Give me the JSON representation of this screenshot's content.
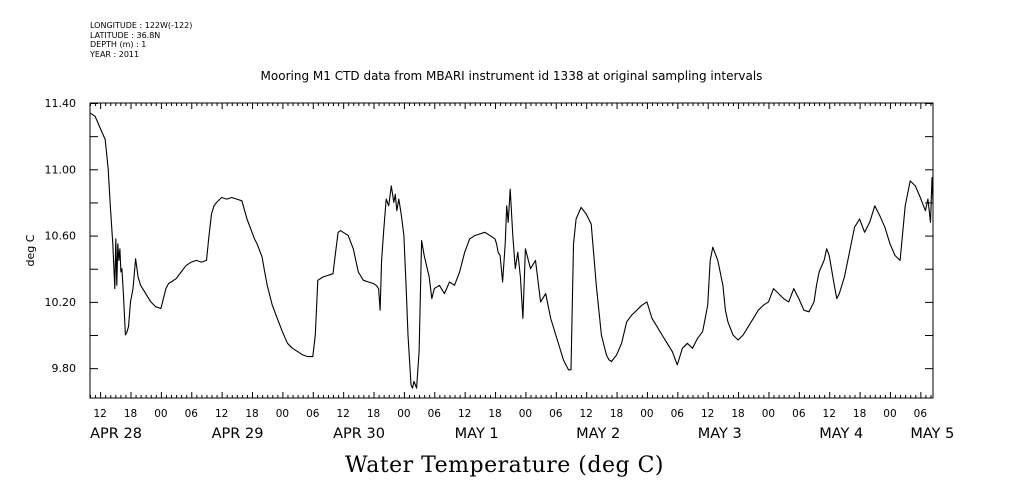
{
  "meta": {
    "longitude": "LONGITUDE : 122W(-122)",
    "latitude": "LATITUDE : 36.8N",
    "depth": "DEPTH (m) : 1",
    "year": "YEAR : 2011"
  },
  "chart_data": {
    "type": "line",
    "title": "Mooring M1 CTD data from MBARI instrument id 1338 at original sampling intervals",
    "ylabel": "deg C",
    "xlabel": "Water Temperature (deg C)",
    "ylim": [
      9.62,
      11.4
    ],
    "yticks": [
      "11.40",
      "11.00",
      "10.60",
      "10.20",
      "9.80"
    ],
    "ytick_values": [
      11.4,
      11.0,
      10.6,
      10.2,
      9.8
    ],
    "x_unit": "hours since APR 28 00:00 (2011)",
    "xlim": [
      10,
      176.5
    ],
    "xtick_hour_labels": [
      "12",
      "18",
      "00",
      "06",
      "12",
      "18",
      "00",
      "06",
      "12",
      "18",
      "00",
      "06",
      "12",
      "18",
      "00",
      "06",
      "12",
      "18",
      "00",
      "06",
      "12",
      "18",
      "00",
      "06",
      "12",
      "18",
      "00",
      "06"
    ],
    "xtick_hour_values": [
      12,
      18,
      24,
      30,
      36,
      42,
      48,
      54,
      60,
      66,
      72,
      78,
      84,
      90,
      96,
      102,
      108,
      114,
      120,
      126,
      132,
      138,
      144,
      150,
      156,
      162,
      168,
      174
    ],
    "date_labels": [
      "APR 28",
      "APR 29",
      "APR 30",
      "MAY  1",
      "MAY  2",
      "MAY  3",
      "MAY  4",
      "MAY  5"
    ],
    "date_positions": [
      12,
      36,
      60,
      84,
      108,
      132,
      156,
      174
    ],
    "series": [
      {
        "color": "#000000",
        "x": [
          10,
          11,
          12,
          13,
          13.6,
          14,
          14.5,
          14.9,
          15.1,
          15.3,
          15.5,
          15.7,
          15.9,
          16.1,
          16.3,
          16.6,
          17,
          17.3,
          17.6,
          18,
          18.5,
          19,
          19.5,
          20,
          21,
          22,
          23,
          24,
          25,
          25.5,
          26,
          27,
          28,
          29,
          30,
          31,
          32,
          33,
          33.5,
          34,
          34.5,
          35,
          36,
          37,
          38,
          39,
          40,
          41,
          42,
          42.5,
          43,
          44,
          44.5,
          45,
          46,
          47,
          48,
          49,
          50,
          51,
          52,
          53,
          54,
          54.5,
          55,
          56,
          57,
          58,
          58.5,
          59,
          59.5,
          60,
          61,
          62,
          62.5,
          63,
          64,
          65,
          66,
          66.5,
          67,
          67.3,
          67.6,
          68,
          68.5,
          69,
          69.5,
          70,
          70.3,
          70.6,
          71,
          71.2,
          71.5,
          72,
          72.5,
          72.8,
          73.1,
          73.4,
          73.7,
          74,
          74.5,
          75,
          75.5,
          76,
          77,
          77.5,
          78,
          79,
          80,
          81,
          82,
          83,
          84,
          85,
          86,
          87,
          88,
          89,
          90,
          90.3,
          90.6,
          91,
          91.5,
          92,
          92.3,
          92.6,
          93,
          93.5,
          94,
          94.5,
          95,
          95.5,
          96,
          97,
          98,
          99,
          100,
          101,
          102,
          103,
          103.5,
          104,
          104.5,
          105,
          105.5,
          106,
          107,
          108,
          109,
          110,
          111,
          112,
          112.5,
          113,
          114,
          115,
          116,
          117,
          118,
          119,
          120,
          121,
          122,
          123,
          124,
          125,
          126,
          127,
          128,
          129,
          130,
          131,
          131.5,
          132,
          132.5,
          133,
          134,
          135,
          135.5,
          136,
          137,
          138,
          139,
          140,
          141,
          142,
          143,
          144,
          145,
          146,
          147,
          148,
          149,
          150,
          151,
          152,
          153,
          153.5,
          154,
          155,
          155.5,
          156,
          157,
          157.5,
          158,
          159,
          160,
          161,
          162,
          163,
          164,
          165,
          166,
          167,
          168,
          169,
          170,
          171,
          172,
          173,
          174,
          175,
          175.5,
          176,
          176.3,
          176.5
        ],
        "values": [
          11.34,
          11.32,
          11.25,
          11.18,
          11.0,
          10.78,
          10.55,
          10.28,
          10.58,
          10.3,
          10.55,
          10.45,
          10.52,
          10.38,
          10.4,
          10.25,
          10.0,
          10.02,
          10.05,
          10.2,
          10.28,
          10.46,
          10.35,
          10.3,
          10.25,
          10.2,
          10.17,
          10.16,
          10.28,
          10.31,
          10.32,
          10.34,
          10.38,
          10.42,
          10.44,
          10.45,
          10.44,
          10.45,
          10.6,
          10.73,
          10.78,
          10.8,
          10.83,
          10.82,
          10.83,
          10.82,
          10.81,
          10.7,
          10.62,
          10.58,
          10.55,
          10.47,
          10.38,
          10.3,
          10.18,
          10.1,
          10.02,
          9.95,
          9.92,
          9.9,
          9.88,
          9.87,
          9.87,
          10.0,
          10.33,
          10.35,
          10.36,
          10.37,
          10.5,
          10.62,
          10.63,
          10.62,
          10.6,
          10.52,
          10.45,
          10.38,
          10.33,
          10.32,
          10.31,
          10.3,
          10.28,
          10.15,
          10.45,
          10.63,
          10.82,
          10.78,
          10.9,
          10.8,
          10.85,
          10.75,
          10.82,
          10.78,
          10.72,
          10.6,
          10.25,
          10.0,
          9.85,
          9.7,
          9.68,
          9.72,
          9.68,
          9.9,
          10.57,
          10.48,
          10.35,
          10.22,
          10.28,
          10.3,
          10.25,
          10.32,
          10.3,
          10.38,
          10.5,
          10.58,
          10.6,
          10.61,
          10.62,
          10.6,
          10.58,
          10.55,
          10.5,
          10.48,
          10.32,
          10.55,
          10.78,
          10.68,
          10.88,
          10.6,
          10.4,
          10.5,
          10.35,
          10.1,
          10.52,
          10.4,
          10.45,
          10.2,
          10.25,
          10.1,
          10.0,
          9.9,
          9.85,
          9.82,
          9.79,
          9.79,
          10.55,
          10.7,
          10.77,
          10.73,
          10.67,
          10.3,
          10.0,
          9.88,
          9.85,
          9.84,
          9.88,
          9.95,
          10.08,
          10.12,
          10.15,
          10.18,
          10.2,
          10.1,
          10.05,
          10.0,
          9.95,
          9.9,
          9.82,
          9.92,
          9.95,
          9.92,
          9.98,
          10.02,
          10.1,
          10.18,
          10.45,
          10.53,
          10.45,
          10.3,
          10.15,
          10.08,
          10.0,
          9.97,
          10.0,
          10.05,
          10.1,
          10.15,
          10.18,
          10.2,
          10.28,
          10.25,
          10.22,
          10.2,
          10.28,
          10.22,
          10.15,
          10.14,
          10.2,
          10.3,
          10.38,
          10.45,
          10.52,
          10.48,
          10.3,
          10.22,
          10.25,
          10.35,
          10.5,
          10.65,
          10.7,
          10.62,
          10.68,
          10.78,
          10.72,
          10.65,
          10.55,
          10.48,
          10.45,
          10.78,
          10.93,
          10.9,
          10.83,
          10.75,
          10.82,
          10.68,
          10.95,
          10.8
        ]
      }
    ]
  }
}
